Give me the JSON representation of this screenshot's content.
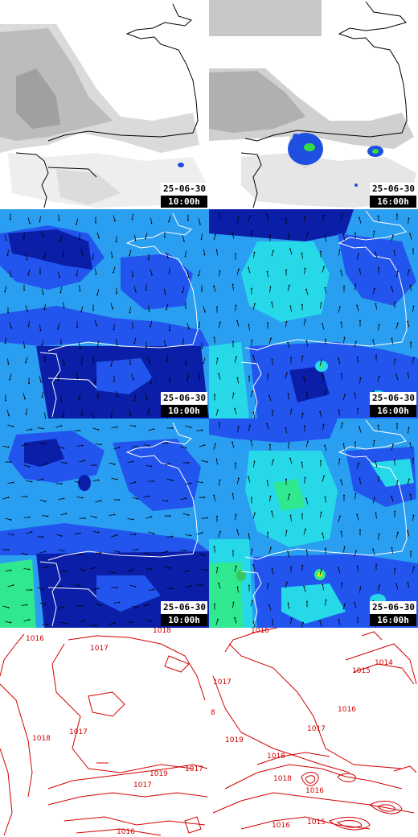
{
  "colors": {
    "cloud_light": "#e8e8e8",
    "cloud_dark": "#a8a8a8",
    "rain_blue": "#1f4fe0",
    "rain_green": "#33dd44",
    "wind_deep": "#0a1ea8",
    "wind_mid": "#2255ee",
    "wind_light": "#2a9ef0",
    "wind_cyan": "#26d8e8",
    "wind_green": "#30e890",
    "coast_line_dark": "#000000",
    "coast_line_light": "#ffffff",
    "isobar_red": "#d40000"
  },
  "panels": [
    {
      "row": "cloud-rain",
      "column": "left",
      "date": "25-06-30",
      "time": "10:00h"
    },
    {
      "row": "cloud-rain",
      "column": "right",
      "date": "25-06-30",
      "time": "16:00h"
    },
    {
      "row": "wind-surface",
      "column": "left",
      "date": "25-06-30",
      "time": "10:00h"
    },
    {
      "row": "wind-surface",
      "column": "right",
      "date": "25-06-30",
      "time": "16:00h"
    },
    {
      "row": "wind-altitude",
      "column": "left",
      "date": "25-06-30",
      "time": "10:00h"
    },
    {
      "row": "wind-altitude",
      "column": "right",
      "date": "25-06-30",
      "time": "16:00h"
    },
    {
      "row": "pressure",
      "column": "left"
    },
    {
      "row": "pressure",
      "column": "right"
    }
  ],
  "isobar_labels": {
    "left": [
      "1016",
      "1017",
      "1018",
      "1017",
      "1018",
      "1019",
      "1017",
      "1016",
      "1017"
    ],
    "right": [
      "1016",
      "1017",
      "1015",
      "1014",
      "1016",
      "1017",
      "1019",
      "1018",
      "1018",
      "1016",
      "1015",
      "1016",
      "8"
    ]
  },
  "icons": {
    "wind_arrow": "arrow-icon",
    "coastline": "coastline-icon"
  }
}
